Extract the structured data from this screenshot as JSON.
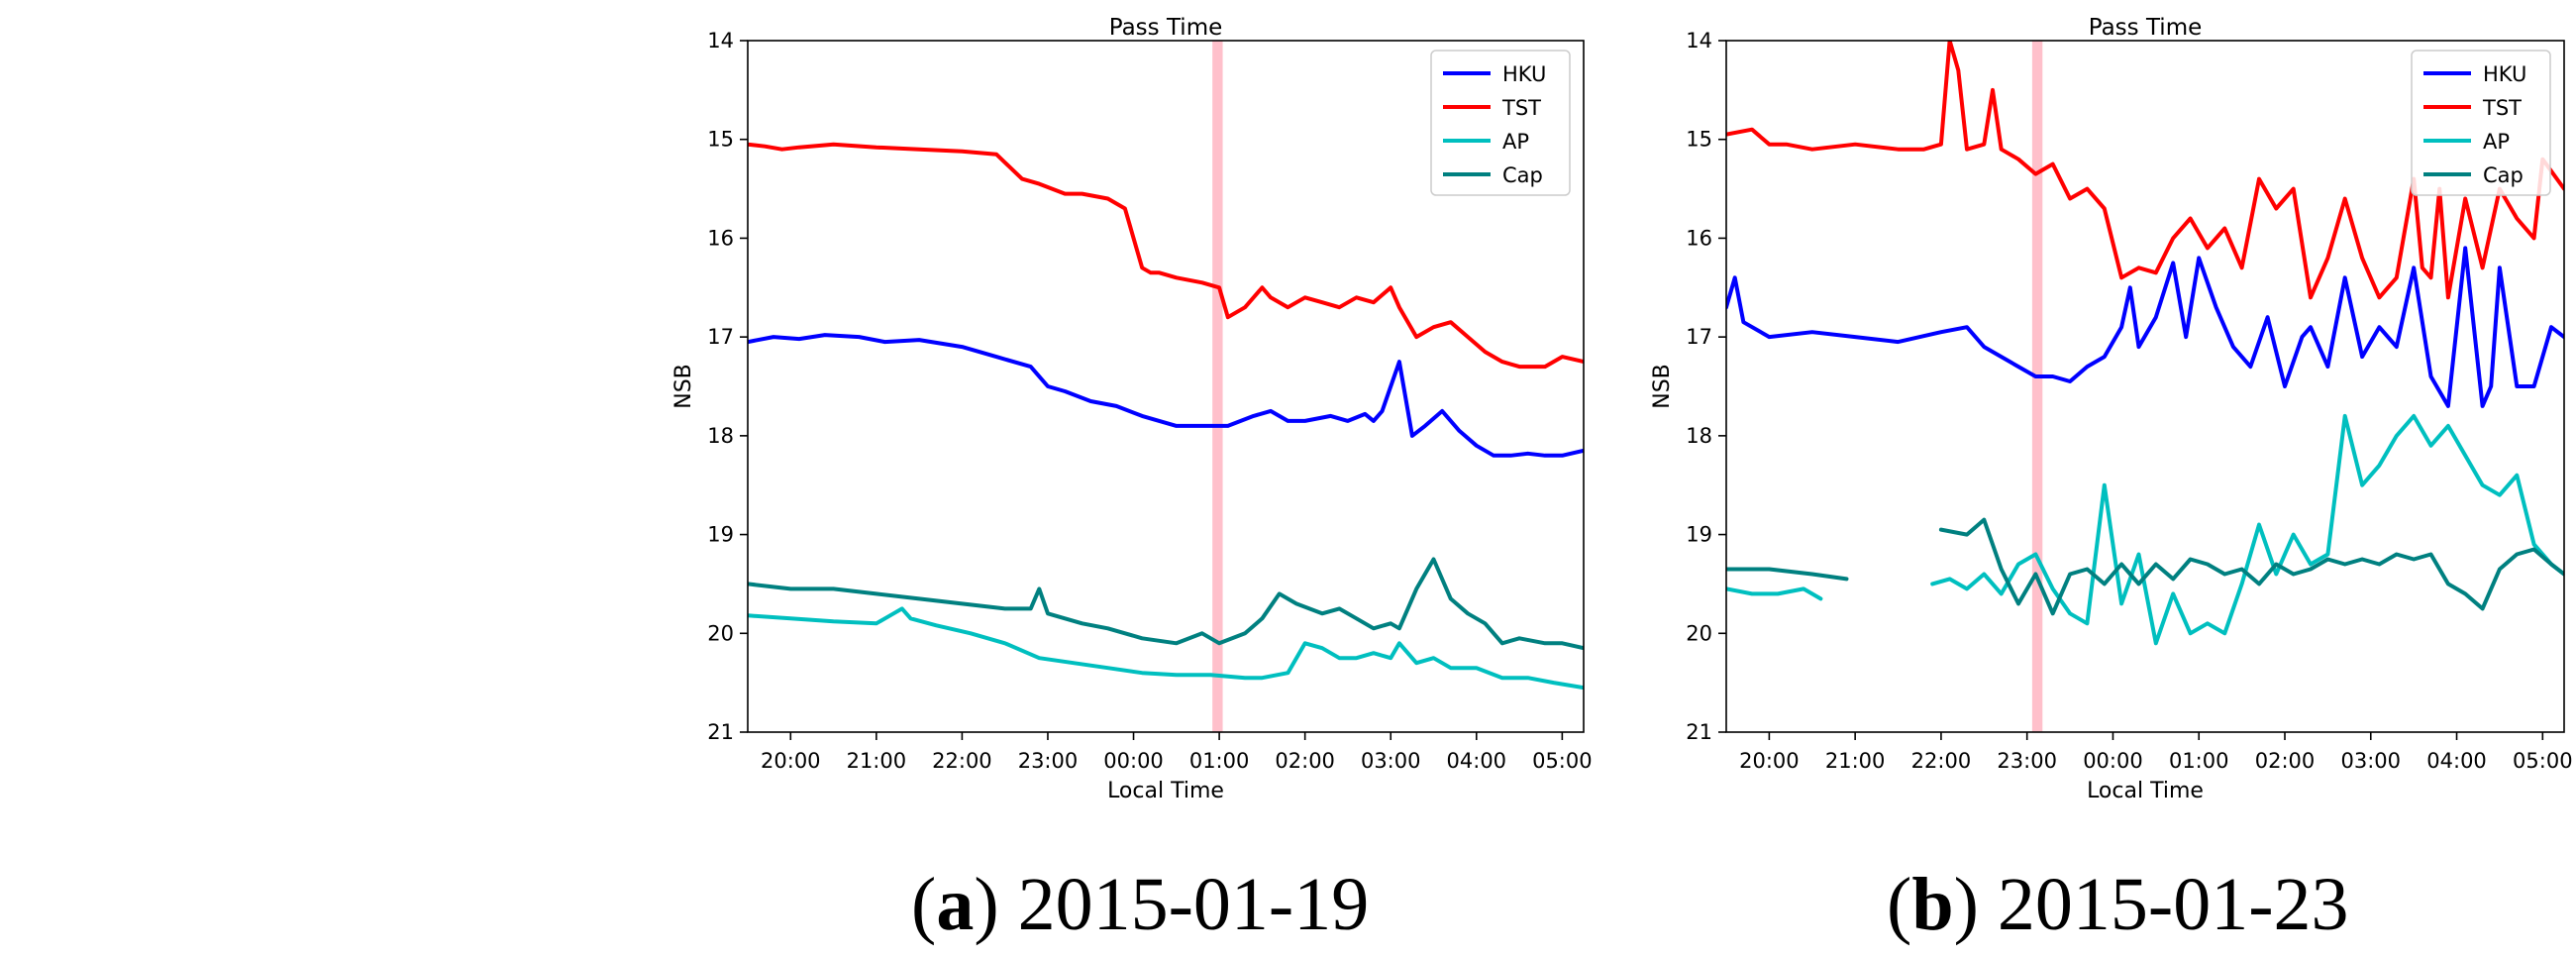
{
  "figure": {
    "panels": [
      {
        "caption_letter": "a",
        "caption_date": "2015-01-19"
      },
      {
        "caption_letter": "b",
        "caption_date": "2015-01-23"
      }
    ]
  },
  "colors": {
    "HKU": "#0000ff",
    "TST": "#ff0000",
    "AP": "#00bfbf",
    "Cap": "#008080",
    "pass_band": "#ffc0cb"
  },
  "chart_data": [
    {
      "type": "line",
      "title": "Pass Time",
      "xlabel": "Local Time",
      "ylabel": "NSB",
      "x_unit": "hours after 19:30 local time",
      "xlim": [
        0,
        9.75
      ],
      "ylim": [
        21,
        14
      ],
      "y_inverted": true,
      "xticks": [
        0.5,
        1.5,
        2.5,
        3.5,
        4.5,
        5.5,
        6.5,
        7.5,
        8.5,
        9.5
      ],
      "xtick_labels": [
        "20:00",
        "21:00",
        "22:00",
        "23:00",
        "00:00",
        "01:00",
        "02:00",
        "03:00",
        "04:00",
        "05:00"
      ],
      "yticks": [
        14,
        15,
        16,
        17,
        18,
        19,
        20,
        21
      ],
      "pass_band": [
        5.42,
        5.54
      ],
      "legend": {
        "position": "top-right",
        "entries": [
          "HKU",
          "TST",
          "AP",
          "Cap"
        ]
      },
      "series": [
        {
          "name": "HKU",
          "color": "#0000ff",
          "x": [
            0,
            0.3,
            0.6,
            0.9,
            1.3,
            1.6,
            2,
            2.5,
            2.9,
            3.3,
            3.5,
            3.7,
            4,
            4.3,
            4.6,
            5,
            5.3,
            5.6,
            5.9,
            6.1,
            6.3,
            6.5,
            6.8,
            7,
            7.2,
            7.3,
            7.4,
            7.6,
            7.75,
            7.9,
            8.1,
            8.3,
            8.5,
            8.7,
            8.9,
            9.1,
            9.3,
            9.5,
            9.75
          ],
          "y": [
            17.05,
            17.0,
            17.02,
            16.98,
            17.0,
            17.05,
            17.03,
            17.1,
            17.2,
            17.3,
            17.5,
            17.55,
            17.65,
            17.7,
            17.8,
            17.9,
            17.9,
            17.9,
            17.8,
            17.75,
            17.85,
            17.85,
            17.8,
            17.85,
            17.78,
            17.85,
            17.75,
            17.25,
            18.0,
            17.9,
            17.75,
            17.95,
            18.1,
            18.2,
            18.2,
            18.18,
            18.2,
            18.2,
            18.15
          ]
        },
        {
          "name": "TST",
          "color": "#ff0000",
          "x": [
            0,
            0.2,
            0.4,
            0.6,
            1,
            1.5,
            2,
            2.5,
            2.9,
            3.2,
            3.4,
            3.7,
            3.9,
            4.2,
            4.4,
            4.6,
            4.7,
            4.8,
            5,
            5.3,
            5.5,
            5.6,
            5.8,
            6,
            6.1,
            6.3,
            6.5,
            6.7,
            6.9,
            7.1,
            7.3,
            7.5,
            7.6,
            7.8,
            8,
            8.2,
            8.4,
            8.6,
            8.8,
            9,
            9.3,
            9.5,
            9.75
          ],
          "y": [
            15.05,
            15.07,
            15.1,
            15.08,
            15.05,
            15.08,
            15.1,
            15.12,
            15.15,
            15.4,
            15.45,
            15.55,
            15.55,
            15.6,
            15.7,
            16.3,
            16.35,
            16.35,
            16.4,
            16.45,
            16.5,
            16.8,
            16.7,
            16.5,
            16.6,
            16.7,
            16.6,
            16.65,
            16.7,
            16.6,
            16.65,
            16.5,
            16.7,
            17.0,
            16.9,
            16.85,
            17.0,
            17.15,
            17.25,
            17.3,
            17.3,
            17.2,
            17.25
          ]
        },
        {
          "name": "AP",
          "color": "#00bfbf",
          "x": [
            0,
            0.5,
            1,
            1.5,
            1.7,
            1.8,
            1.9,
            2.2,
            2.6,
            3,
            3.4,
            3.8,
            4.2,
            4.6,
            5,
            5.4,
            5.8,
            6,
            6.3,
            6.5,
            6.7,
            6.9,
            7.1,
            7.3,
            7.5,
            7.6,
            7.8,
            8,
            8.2,
            8.5,
            8.8,
            9.1,
            9.4,
            9.75
          ],
          "y": [
            19.82,
            19.85,
            19.88,
            19.9,
            19.8,
            19.75,
            19.85,
            19.92,
            20.0,
            20.1,
            20.25,
            20.3,
            20.35,
            20.4,
            20.42,
            20.42,
            20.45,
            20.45,
            20.4,
            20.1,
            20.15,
            20.25,
            20.25,
            20.2,
            20.25,
            20.1,
            20.3,
            20.25,
            20.35,
            20.35,
            20.45,
            20.45,
            20.5,
            20.55
          ]
        },
        {
          "name": "Cap",
          "color": "#008080",
          "x": [
            0,
            0.5,
            1,
            1.5,
            2,
            2.5,
            3,
            3.3,
            3.4,
            3.5,
            3.7,
            3.9,
            4.2,
            4.6,
            5,
            5.3,
            5.5,
            5.8,
            6,
            6.2,
            6.4,
            6.7,
            6.9,
            7.1,
            7.3,
            7.5,
            7.6,
            7.8,
            8,
            8.2,
            8.4,
            8.6,
            8.8,
            9,
            9.3,
            9.5,
            9.75
          ],
          "y": [
            19.5,
            19.55,
            19.55,
            19.6,
            19.65,
            19.7,
            19.75,
            19.75,
            19.55,
            19.8,
            19.85,
            19.9,
            19.95,
            20.05,
            20.1,
            20.0,
            20.1,
            20.0,
            19.85,
            19.6,
            19.7,
            19.8,
            19.75,
            19.85,
            19.95,
            19.9,
            19.95,
            19.55,
            19.25,
            19.65,
            19.8,
            19.9,
            20.1,
            20.05,
            20.1,
            20.1,
            20.15
          ]
        }
      ]
    },
    {
      "type": "line",
      "title": "Pass Time",
      "xlabel": "Local Time",
      "ylabel": "NSB",
      "x_unit": "hours after 19:30 local time",
      "xlim": [
        0,
        9.75
      ],
      "ylim": [
        21,
        14
      ],
      "y_inverted": true,
      "xticks": [
        0.5,
        1.5,
        2.5,
        3.5,
        4.5,
        5.5,
        6.5,
        7.5,
        8.5,
        9.5
      ],
      "xtick_labels": [
        "20:00",
        "21:00",
        "22:00",
        "23:00",
        "00:00",
        "01:00",
        "02:00",
        "03:00",
        "04:00",
        "05:00"
      ],
      "yticks": [
        14,
        15,
        16,
        17,
        18,
        19,
        20,
        21
      ],
      "pass_band": [
        3.56,
        3.68
      ],
      "legend": {
        "position": "top-right",
        "entries": [
          "HKU",
          "TST",
          "AP",
          "Cap"
        ]
      },
      "series": [
        {
          "name": "HKU",
          "color": "#0000ff",
          "x": [
            0,
            0.1,
            0.2,
            0.5,
            1,
            1.5,
            2,
            2.5,
            2.8,
            3,
            3.2,
            3.4,
            3.6,
            3.8,
            4,
            4.2,
            4.4,
            4.6,
            4.7,
            4.8,
            5,
            5.2,
            5.35,
            5.5,
            5.7,
            5.9,
            6.1,
            6.3,
            6.5,
            6.7,
            6.8,
            7,
            7.2,
            7.4,
            7.6,
            7.8,
            8,
            8.2,
            8.4,
            8.6,
            8.8,
            8.9,
            9,
            9.2,
            9.4,
            9.6,
            9.75
          ],
          "y": [
            16.7,
            16.4,
            16.85,
            17.0,
            16.95,
            17.0,
            17.05,
            16.95,
            16.9,
            17.1,
            17.2,
            17.3,
            17.4,
            17.4,
            17.45,
            17.3,
            17.2,
            16.9,
            16.5,
            17.1,
            16.8,
            16.25,
            17.0,
            16.2,
            16.7,
            17.1,
            17.3,
            16.8,
            17.5,
            17.0,
            16.9,
            17.3,
            16.4,
            17.2,
            16.9,
            17.1,
            16.3,
            17.4,
            17.7,
            16.1,
            17.7,
            17.5,
            16.3,
            17.5,
            17.5,
            16.9,
            17.0
          ]
        },
        {
          "name": "TST",
          "color": "#ff0000",
          "x": [
            0,
            0.3,
            0.5,
            0.7,
            1,
            1.5,
            2,
            2.3,
            2.5,
            2.6,
            2.7,
            2.8,
            3,
            3.1,
            3.2,
            3.4,
            3.6,
            3.7,
            3.8,
            4,
            4.2,
            4.4,
            4.6,
            4.8,
            5,
            5.2,
            5.4,
            5.6,
            5.8,
            6,
            6.2,
            6.4,
            6.6,
            6.8,
            7,
            7.2,
            7.4,
            7.6,
            7.8,
            8,
            8.1,
            8.2,
            8.3,
            8.4,
            8.6,
            8.8,
            9,
            9.2,
            9.4,
            9.5,
            9.75
          ],
          "y": [
            14.95,
            14.9,
            15.05,
            15.05,
            15.1,
            15.05,
            15.1,
            15.1,
            15.05,
            14.0,
            14.3,
            15.1,
            15.05,
            14.5,
            15.1,
            15.2,
            15.35,
            15.3,
            15.25,
            15.6,
            15.5,
            15.7,
            16.4,
            16.3,
            16.35,
            16.0,
            15.8,
            16.1,
            15.9,
            16.3,
            15.4,
            15.7,
            15.5,
            16.6,
            16.2,
            15.6,
            16.2,
            16.6,
            16.4,
            15.4,
            16.3,
            16.4,
            15.5,
            16.6,
            15.6,
            16.3,
            15.5,
            15.8,
            16.0,
            15.2,
            15.5
          ]
        },
        {
          "name": "AP",
          "color": "#00bfbf",
          "x": [
            0,
            0.3,
            0.6,
            0.9,
            1.1,
            "gap",
            2.4,
            2.6,
            2.8,
            3,
            3.2,
            3.4,
            3.6,
            3.8,
            4,
            4.2,
            4.4,
            4.6,
            4.8,
            5,
            5.2,
            5.4,
            5.6,
            5.8,
            6,
            6.2,
            6.4,
            6.6,
            6.8,
            7,
            7.2,
            7.4,
            7.6,
            7.8,
            8,
            8.2,
            8.4,
            8.6,
            8.8,
            9,
            9.2,
            9.4,
            9.6,
            9.75
          ],
          "y": [
            19.55,
            19.6,
            19.6,
            19.55,
            19.65,
            null,
            19.5,
            19.45,
            19.55,
            19.4,
            19.6,
            19.3,
            19.2,
            19.55,
            19.8,
            19.9,
            18.5,
            19.7,
            19.2,
            20.1,
            19.6,
            20.0,
            19.9,
            20.0,
            19.5,
            18.9,
            19.4,
            19.0,
            19.3,
            19.2,
            17.8,
            18.5,
            18.3,
            18.0,
            17.8,
            18.1,
            17.9,
            18.2,
            18.5,
            18.6,
            18.4,
            19.1,
            19.3,
            19.4
          ]
        },
        {
          "name": "Cap",
          "color": "#008080",
          "x": [
            0,
            0.5,
            1,
            1.4,
            "gap",
            2.5,
            2.8,
            3,
            3.2,
            3.4,
            3.6,
            3.8,
            4,
            4.2,
            4.4,
            4.6,
            4.8,
            5,
            5.2,
            5.4,
            5.6,
            5.8,
            6,
            6.2,
            6.4,
            6.6,
            6.8,
            7,
            7.2,
            7.4,
            7.6,
            7.8,
            8,
            8.2,
            8.4,
            8.6,
            8.8,
            9,
            9.2,
            9.4,
            9.6,
            9.75
          ],
          "y": [
            19.35,
            19.35,
            19.4,
            19.45,
            null,
            18.95,
            19.0,
            18.85,
            19.35,
            19.7,
            19.4,
            19.8,
            19.4,
            19.35,
            19.5,
            19.3,
            19.5,
            19.3,
            19.45,
            19.25,
            19.3,
            19.4,
            19.35,
            19.5,
            19.3,
            19.4,
            19.35,
            19.25,
            19.3,
            19.25,
            19.3,
            19.2,
            19.25,
            19.2,
            19.5,
            19.6,
            19.75,
            19.35,
            19.2,
            19.15,
            19.3,
            19.4
          ]
        }
      ]
    }
  ]
}
